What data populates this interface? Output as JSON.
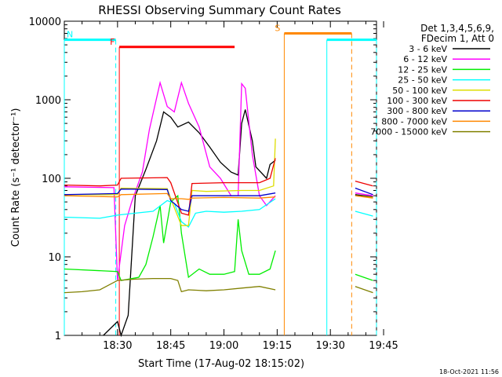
{
  "chart_data": {
    "type": "line",
    "title": "RHESSI Observing Summary Count Rates",
    "xlabel": "Start Time (17-Aug-02 18:15:02)",
    "ylabel": "Count Rate (s⁻¹ detector⁻¹)",
    "yscale": "log",
    "xlim_min": [
      15,
      103
    ],
    "ylim": [
      1,
      10000
    ],
    "x_tick_labels": [
      "18:30",
      "18:45",
      "19:00",
      "19:15",
      "19:30",
      "19:45"
    ],
    "x_tick_minutes": [
      30,
      45,
      60,
      75,
      90,
      105
    ],
    "y_ticks": [
      1,
      10,
      100,
      1000,
      10000
    ],
    "y_tick_labels": [
      "1",
      "10",
      "100",
      "1000",
      "10000"
    ],
    "legend_header": [
      "Det 1,3,4,5,6,9,",
      "FDecim 1, Att 0"
    ],
    "series": [
      {
        "name": "3 - 6 keV",
        "color": "#000000",
        "points": [
          [
            26,
            1
          ],
          [
            30,
            1.5
          ],
          [
            31,
            1
          ],
          [
            33,
            1.8
          ],
          [
            35,
            60
          ],
          [
            38,
            130
          ],
          [
            41,
            300
          ],
          [
            43,
            700
          ],
          [
            45,
            600
          ],
          [
            47,
            450
          ],
          [
            50,
            520
          ],
          [
            53,
            380
          ],
          [
            56,
            250
          ],
          [
            59,
            160
          ],
          [
            62,
            120
          ],
          [
            64,
            110
          ],
          [
            65,
            500
          ],
          [
            66,
            750
          ],
          [
            68,
            300
          ],
          [
            69,
            140
          ],
          [
            72,
            100
          ],
          [
            73,
            150
          ],
          [
            74.5,
            170
          ],
          [
            96,
            null
          ],
          [
            97,
            62
          ],
          [
            102,
            58
          ]
        ]
      },
      {
        "name": "6 - 12 keV",
        "color": "#ff00ff",
        "points": [
          [
            15,
            78
          ],
          [
            29,
            76
          ],
          [
            30,
            5
          ],
          [
            32,
            25
          ],
          [
            34,
            50
          ],
          [
            37,
            120
          ],
          [
            39,
            420
          ],
          [
            42,
            1650
          ],
          [
            44,
            820
          ],
          [
            46,
            700
          ],
          [
            48,
            1650
          ],
          [
            50,
            900
          ],
          [
            53,
            450
          ],
          [
            56,
            140
          ],
          [
            59,
            100
          ],
          [
            62,
            60
          ],
          [
            64,
            60
          ],
          [
            65,
            1600
          ],
          [
            66,
            1400
          ],
          [
            68,
            200
          ],
          [
            70,
            60
          ],
          [
            72,
            45
          ],
          [
            74.5,
            60
          ],
          [
            96,
            null
          ],
          [
            97,
            65
          ],
          [
            102,
            60
          ]
        ]
      },
      {
        "name": "12 - 25 keV",
        "color": "#00ee00",
        "points": [
          [
            15,
            7
          ],
          [
            30,
            6.5
          ],
          [
            31,
            5
          ],
          [
            36,
            5.5
          ],
          [
            38,
            8
          ],
          [
            40,
            18
          ],
          [
            42,
            45
          ],
          [
            43,
            15
          ],
          [
            45,
            50
          ],
          [
            47,
            60
          ],
          [
            48,
            20
          ],
          [
            50,
            5.5
          ],
          [
            53,
            7
          ],
          [
            56,
            6
          ],
          [
            60,
            6
          ],
          [
            63,
            6.5
          ],
          [
            64,
            30
          ],
          [
            65,
            12
          ],
          [
            67,
            6
          ],
          [
            70,
            6
          ],
          [
            73,
            7
          ],
          [
            74.5,
            12
          ],
          [
            96,
            null
          ],
          [
            97,
            6
          ],
          [
            102,
            5
          ]
        ]
      },
      {
        "name": "25 - 50 keV",
        "color": "#00ffff",
        "points": [
          [
            15,
            32
          ],
          [
            25,
            31
          ],
          [
            30,
            34
          ],
          [
            35,
            36
          ],
          [
            40,
            38
          ],
          [
            44,
            52
          ],
          [
            46,
            48
          ],
          [
            48,
            28
          ],
          [
            50,
            24
          ],
          [
            52,
            36
          ],
          [
            55,
            38
          ],
          [
            60,
            37
          ],
          [
            65,
            38
          ],
          [
            70,
            40
          ],
          [
            74.5,
            55
          ],
          [
            96,
            null
          ],
          [
            97,
            38
          ],
          [
            102,
            33
          ]
        ]
      },
      {
        "name": "50 - 100 keV",
        "color": "#dddd00",
        "points": [
          [
            15,
            62
          ],
          [
            30,
            62
          ],
          [
            31,
            75
          ],
          [
            44,
            74
          ],
          [
            45,
            55
          ],
          [
            48,
            25
          ],
          [
            50,
            25
          ],
          [
            51,
            70
          ],
          [
            55,
            68
          ],
          [
            65,
            70
          ],
          [
            70,
            70
          ],
          [
            74,
            80
          ],
          [
            74.5,
            320
          ],
          [
            96,
            null
          ],
          [
            97,
            60
          ],
          [
            102,
            57
          ]
        ]
      },
      {
        "name": "100 - 300 keV",
        "color": "#ee0000",
        "points": [
          [
            15,
            82
          ],
          [
            25,
            80
          ],
          [
            30,
            82
          ],
          [
            31,
            100
          ],
          [
            44,
            102
          ],
          [
            45,
            88
          ],
          [
            48,
            36
          ],
          [
            50,
            34
          ],
          [
            51,
            86
          ],
          [
            60,
            88
          ],
          [
            70,
            88
          ],
          [
            73,
            100
          ],
          [
            74.5,
            180
          ],
          [
            96,
            null
          ],
          [
            97,
            92
          ],
          [
            102,
            80
          ]
        ]
      },
      {
        "name": "300 - 800 keV",
        "color": "#0000cc",
        "points": [
          [
            15,
            62
          ],
          [
            30,
            64
          ],
          [
            31,
            73
          ],
          [
            44,
            72
          ],
          [
            45,
            52
          ],
          [
            48,
            40
          ],
          [
            50,
            38
          ],
          [
            51,
            60
          ],
          [
            60,
            60
          ],
          [
            70,
            60
          ],
          [
            74.5,
            65
          ],
          [
            96,
            null
          ],
          [
            97,
            75
          ],
          [
            102,
            62
          ]
        ]
      },
      {
        "name": "800 - 7000 keV",
        "color": "#ff8800",
        "points": [
          [
            15,
            60
          ],
          [
            30,
            58
          ],
          [
            31,
            62
          ],
          [
            44,
            64
          ],
          [
            45,
            55
          ],
          [
            48,
            55
          ],
          [
            50,
            54
          ],
          [
            51,
            56
          ],
          [
            60,
            57
          ],
          [
            70,
            56
          ],
          [
            74.5,
            58
          ],
          [
            96,
            null
          ],
          [
            97,
            60
          ],
          [
            102,
            56
          ]
        ]
      },
      {
        "name": "7000 - 15000 keV",
        "color": "#808000",
        "points": [
          [
            15,
            3.5
          ],
          [
            20,
            3.6
          ],
          [
            25,
            3.8
          ],
          [
            30,
            5
          ],
          [
            35,
            5.2
          ],
          [
            40,
            5.3
          ],
          [
            45,
            5.3
          ],
          [
            47,
            5.0
          ],
          [
            48,
            3.6
          ],
          [
            50,
            3.8
          ],
          [
            55,
            3.7
          ],
          [
            60,
            3.8
          ],
          [
            65,
            4.0
          ],
          [
            70,
            4.2
          ],
          [
            74.5,
            3.8
          ],
          [
            96,
            null
          ],
          [
            97,
            4.2
          ],
          [
            102,
            3.5
          ]
        ]
      }
    ],
    "flags": [
      {
        "label": "N",
        "color": "#00ffff",
        "value": 5800,
        "x_start": 15,
        "x_end": 29.5,
        "dash_x": 29.5
      },
      {
        "label": "F",
        "color": "#ff0000",
        "value": 4700,
        "x_start": 30.5,
        "x_end": 63
      },
      {
        "label": "S",
        "color": "#ff8800",
        "value": 7000,
        "x_start": 77,
        "x_end": 96,
        "dash_x": 96
      },
      {
        "label": "",
        "color": "#00ffff",
        "value": 5800,
        "x_start": 89,
        "x_end": 103,
        "dash_x": 103
      }
    ],
    "timestamp": "18-Oct-2021 11:56"
  }
}
